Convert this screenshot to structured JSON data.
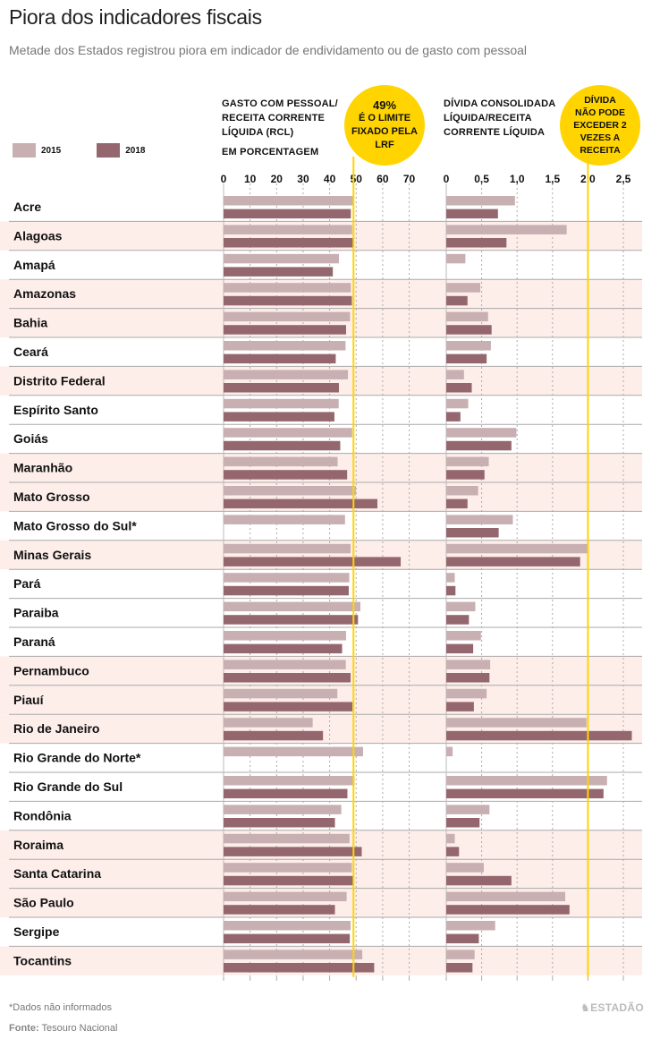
{
  "title": "Piora dos indicadores fiscais",
  "subtitle": "Metade dos Estados registrou piora em indicador de endividamento ou de gasto com pessoal",
  "legend": [
    {
      "label": "2015",
      "color": "#c7afb2"
    },
    {
      "label": "2018",
      "color": "#94676e"
    }
  ],
  "left_panel": {
    "header_lines": [
      "GASTO COM PESSOAL/",
      "RECEITA CORRENTE",
      "LÍQUIDA (RCL)"
    ],
    "unit": "EM PORCENTAGEM",
    "callout": {
      "big": "49%",
      "lines": [
        "É O LIMITE",
        "FIXADO PELA",
        "LRF"
      ]
    }
  },
  "right_panel": {
    "header_lines": [
      "DÍVIDA CONSOLIDADA",
      "LÍQUIDA/RECEITA",
      "CORRENTE LÍQUIDA"
    ],
    "callout": {
      "lines": [
        "DÍVIDA",
        "NÃO PODE",
        "EXCEDER 2",
        "VEZES A",
        "RECEITA"
      ]
    }
  },
  "colors": {
    "bar_2015": "#c7afb2",
    "bar_2018": "#94676e",
    "highlight_row": "#fdeeea",
    "limit_line": "#ffd400",
    "row_divider": "#a9a9a9"
  },
  "footnote": "*Dados não informados",
  "source_label": "Fonte:",
  "source_text": "Tesouro Nacional",
  "logo": "ESTADÃO",
  "chart_data": [
    {
      "type": "bar",
      "orientation": "horizontal",
      "title": "Gasto com pessoal/Receita corrente líquida (RCL)",
      "xlabel": "Em porcentagem",
      "xlim": [
        0,
        75
      ],
      "xticks": [
        0,
        10,
        20,
        30,
        40,
        50,
        60,
        70
      ],
      "xtick_labels": [
        "0",
        "10",
        "20",
        "30",
        "40",
        "50",
        "60",
        "70"
      ],
      "reference_line": {
        "value": 49,
        "label": "49% é o limite fixado pela LRF"
      },
      "grid": true,
      "categories": [
        "Acre",
        "Alagoas",
        "Amapá",
        "Amazonas",
        "Bahia",
        "Ceará",
        "Distrito Federal",
        "Espírito Santo",
        "Goiás",
        "Maranhão",
        "Mato Grosso",
        "Mato Grosso do Sul*",
        "Minas Gerais",
        "Pará",
        "Paraiba",
        "Paraná",
        "Pernambuco",
        "Piauí",
        "Rio de Janeiro",
        "Rio Grande do Norte*",
        "Rio Grande do Sul",
        "Rondônia",
        "Roraima",
        "Santa Catarina",
        "São Paulo",
        "Sergipe",
        "Tocantins"
      ],
      "series": [
        {
          "name": "2015",
          "values": [
            48.8,
            48.5,
            43.5,
            48.0,
            47.7,
            46.0,
            46.9,
            43.4,
            48.5,
            43.0,
            49.9,
            45.8,
            47.9,
            47.4,
            51.6,
            46.2,
            46.1,
            42.9,
            33.6,
            52.6,
            49.4,
            44.4,
            47.5,
            48.4,
            46.4,
            47.9,
            52.3
          ]
        },
        {
          "name": "2018",
          "values": [
            48.0,
            48.9,
            41.2,
            48.4,
            46.2,
            42.3,
            43.5,
            41.8,
            44.0,
            46.6,
            58.0,
            null,
            66.8,
            47.2,
            50.7,
            44.7,
            47.9,
            48.6,
            37.5,
            null,
            46.7,
            42.0,
            52.1,
            48.9,
            42.0,
            47.6,
            56.8
          ]
        }
      ]
    },
    {
      "type": "bar",
      "orientation": "horizontal",
      "title": "Dívida consolidada líquida/Receita corrente líquida",
      "xlabel": "",
      "xlim": [
        0,
        2.7
      ],
      "xticks": [
        0,
        0.5,
        1.0,
        1.5,
        2.0,
        2.5
      ],
      "xtick_labels": [
        "0",
        "0,5",
        "1,0",
        "1,5",
        "2,0",
        "2,5"
      ],
      "reference_line": {
        "value": 2.0,
        "label": "Dívida não pode exceder 2 vezes a receita"
      },
      "grid": true,
      "categories": [
        "Acre",
        "Alagoas",
        "Amapá",
        "Amazonas",
        "Bahia",
        "Ceará",
        "Distrito Federal",
        "Espírito Santo",
        "Goiás",
        "Maranhão",
        "Mato Grosso",
        "Mato Grosso do Sul*",
        "Minas Gerais",
        "Pará",
        "Paraiba",
        "Paraná",
        "Pernambuco",
        "Piauí",
        "Rio de Janeiro",
        "Rio Grande do Norte*",
        "Rio Grande do Sul",
        "Rondônia",
        "Roraima",
        "Santa Catarina",
        "São Paulo",
        "Sergipe",
        "Tocantins"
      ],
      "series": [
        {
          "name": "2015",
          "values": [
            0.97,
            1.7,
            0.27,
            0.48,
            0.59,
            0.63,
            0.25,
            0.31,
            0.99,
            0.6,
            0.45,
            0.94,
            1.99,
            0.12,
            0.41,
            0.49,
            0.62,
            0.57,
            1.98,
            0.09,
            2.27,
            0.61,
            0.12,
            0.53,
            1.68,
            0.69,
            0.4
          ]
        },
        {
          "name": "2018",
          "values": [
            0.73,
            0.85,
            null,
            0.3,
            0.64,
            0.57,
            0.36,
            0.2,
            0.92,
            0.54,
            0.3,
            0.74,
            1.89,
            0.13,
            0.32,
            0.38,
            0.61,
            0.39,
            2.62,
            null,
            2.22,
            0.47,
            0.18,
            0.92,
            1.74,
            0.46,
            0.37
          ]
        }
      ]
    }
  ],
  "worsened_rows": [
    false,
    true,
    false,
    true,
    true,
    false,
    true,
    false,
    false,
    true,
    true,
    false,
    true,
    false,
    false,
    false,
    true,
    true,
    true,
    false,
    false,
    false,
    true,
    true,
    true,
    false,
    true
  ]
}
